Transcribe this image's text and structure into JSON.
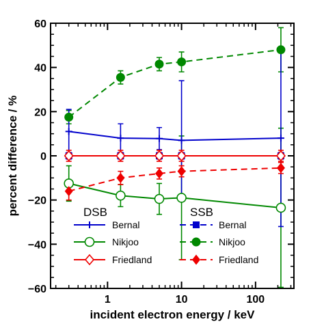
{
  "chart_data": {
    "type": "line",
    "title": "",
    "xlabel": "incident electron energy / keV",
    "ylabel": "percent difference / %",
    "xscale": "log",
    "xlim": [
      0.17,
      330
    ],
    "ylim": [
      -60,
      60
    ],
    "x_ticks": [
      1,
      10,
      100
    ],
    "x_tick_labels": [
      "1",
      "10",
      "100"
    ],
    "y_ticks": [
      -60,
      -40,
      -20,
      0,
      20,
      40,
      60
    ],
    "y_tick_labels": [
      "−60",
      "−40",
      "−20",
      "0",
      "20",
      "40",
      "60"
    ],
    "grid": false,
    "legend_groups": [
      {
        "title": "DSB",
        "entries": [
          "Bernal",
          "Nikjoo",
          "Friedland"
        ]
      },
      {
        "title": "SSB",
        "entries": [
          "Bernal",
          "Nikjoo",
          "Friedland"
        ]
      }
    ],
    "series": [
      {
        "name": "Bernal",
        "group": "DSB",
        "color": "#0000cc",
        "line": "solid",
        "marker": "plus",
        "x": [
          0.3,
          1.5,
          5,
          10,
          220
        ],
        "y": [
          11,
          8,
          7.8,
          7,
          8
        ],
        "err": [
          10,
          6.5,
          5,
          27,
          40
        ]
      },
      {
        "name": "Nikjoo",
        "group": "DSB",
        "color": "#008800",
        "line": "solid",
        "marker": "open-circle",
        "x": [
          0.3,
          1.5,
          5,
          10,
          220
        ],
        "y": [
          -12.5,
          -18,
          -19.5,
          -19,
          -23.5
        ],
        "err": [
          8,
          5,
          7,
          28,
          36
        ]
      },
      {
        "name": "Friedland",
        "group": "DSB",
        "color": "#ee0000",
        "line": "solid",
        "marker": "open-diamond",
        "x": [
          0.3,
          1.5,
          5,
          10,
          220
        ],
        "y": [
          0,
          0,
          0,
          0,
          0
        ],
        "err": [
          2.5,
          2.5,
          2.5,
          2.5,
          2.5
        ]
      },
      {
        "name": "Bernal",
        "group": "SSB",
        "color": "#0000cc",
        "line": "dashed",
        "marker": "filled-square",
        "x": [
          0.3,
          1.5,
          5,
          10,
          220
        ],
        "y": [
          0,
          0,
          0,
          0,
          0
        ],
        "err": [
          1.5,
          1.5,
          1.5,
          1.5,
          1.5
        ]
      },
      {
        "name": "Nikjoo",
        "group": "SSB",
        "color": "#008800",
        "line": "dashed",
        "marker": "filled-circle",
        "x": [
          0.3,
          1.5,
          5,
          10,
          220
        ],
        "y": [
          17.5,
          35.5,
          41.5,
          42.5,
          48
        ],
        "err": [
          3,
          3,
          3,
          4.5,
          10
        ]
      },
      {
        "name": "Friedland",
        "group": "SSB",
        "color": "#ee0000",
        "line": "dashed",
        "marker": "filled-diamond",
        "x": [
          0.3,
          1.5,
          5,
          10,
          220
        ],
        "y": [
          -16,
          -10,
          -8,
          -7,
          -5.5
        ],
        "err": [
          4,
          3,
          2.5,
          2.5,
          2.5
        ]
      }
    ]
  }
}
